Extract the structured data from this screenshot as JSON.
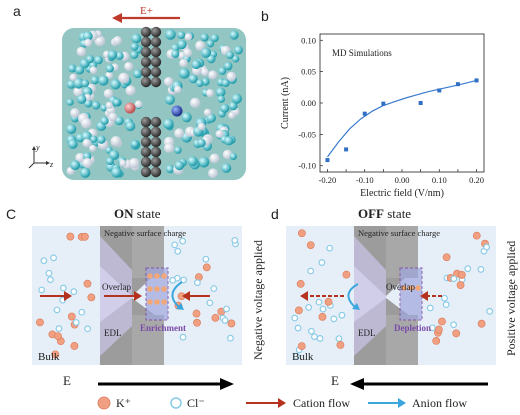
{
  "panels": {
    "a": {
      "letter": "a",
      "field_label": "E+",
      "axis_y": "y",
      "axis_z": "z"
    },
    "b": {
      "letter": "b"
    },
    "c": {
      "letter": "C",
      "state_bold": "ON",
      "state_rest": " state",
      "surface_charge": "Negative surface charge",
      "overlap": "Overlap",
      "edl": "EDL",
      "zone_label": "Enrichment",
      "bulk": "Bulk",
      "field": "E",
      "side_label": "Negative voltage applied"
    },
    "d": {
      "letter": "d",
      "state_bold": "OFF",
      "state_rest": " state",
      "surface_charge": "Negative surface charge",
      "overlap": "Overlap",
      "edl": "EDL",
      "zone_label": "Depletion",
      "bulk": "Bulk",
      "field": "E",
      "side_label": "Positive voltage applied"
    }
  },
  "legend": {
    "k_label": "K⁺",
    "cl_label": "Cl⁻",
    "cation_flow": "Cation flow",
    "anion_flow": "Anion flow"
  },
  "colors": {
    "cation": "#f0a080",
    "anion": "#8ccbe6",
    "cation_arrow": "#b5321e",
    "anion_arrow": "#3aa6dc",
    "zone": "#7b4aa8",
    "channel": "#a9a9a9",
    "bg_panel": "#e6eff8"
  },
  "chart_data": {
    "type": "scatter",
    "annotation": "MD Simulations",
    "xlabel": "Electric field (V/nm)",
    "ylabel": "Current (nA)",
    "xlim": [
      -0.22,
      0.22
    ],
    "ylim": [
      -0.11,
      0.11
    ],
    "xticks": [
      -0.2,
      -0.15,
      -0.1,
      -0.05,
      0.0,
      0.05,
      0.1,
      0.15,
      0.2
    ],
    "xtick_labels": [
      "-0.20",
      "",
      "-0.10",
      "",
      "0.00",
      "",
      "0.10",
      "",
      "0.20"
    ],
    "yticks": [
      -0.1,
      -0.05,
      0.0,
      0.05,
      0.1
    ],
    "ytick_labels": [
      "-0.10",
      "-0.05",
      "0.00",
      "0.05",
      "0.10"
    ],
    "x": [
      -0.2,
      -0.15,
      -0.1,
      -0.05,
      0.05,
      0.1,
      0.15,
      0.2
    ],
    "y": [
      -0.091,
      -0.074,
      -0.017,
      -0.001,
      0.0,
      0.02,
      0.03,
      0.036
    ],
    "fit_x": [
      -0.2,
      -0.17,
      -0.14,
      -0.11,
      -0.08,
      -0.05,
      -0.02,
      0.01,
      0.04,
      0.07,
      0.1,
      0.13,
      0.16,
      0.2
    ],
    "fit_y": [
      -0.086,
      -0.062,
      -0.041,
      -0.025,
      -0.013,
      -0.004,
      0.002,
      0.008,
      0.013,
      0.018,
      0.022,
      0.026,
      0.03,
      0.036
    ],
    "grid": false
  }
}
